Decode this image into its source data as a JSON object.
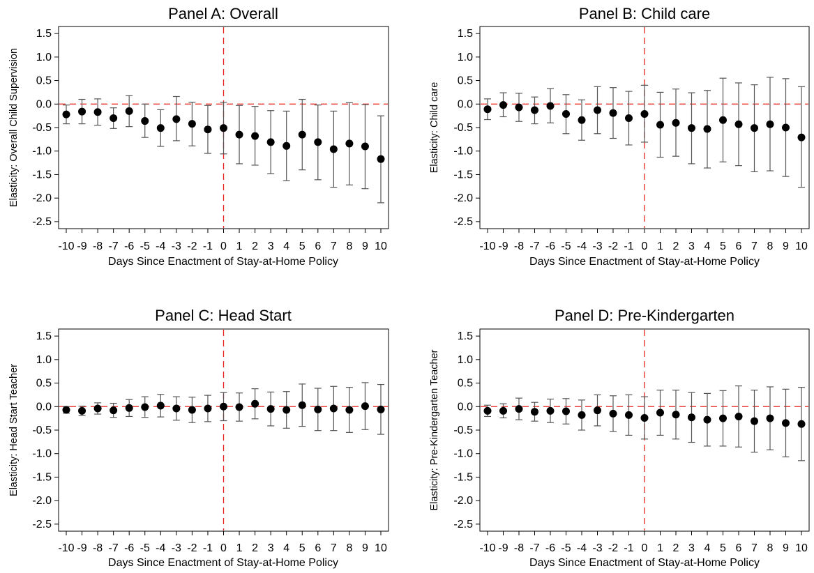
{
  "chart_data": [
    {
      "type": "scatter",
      "title": "Panel A: Overall",
      "xlabel": "Days Since Enactment of Stay-at-Home Policy",
      "ylabel": "Elasticity: Overall Child Supervision",
      "x": [
        -10,
        -9,
        -8,
        -7,
        -6,
        -5,
        -4,
        -3,
        -2,
        -1,
        0,
        1,
        2,
        3,
        4,
        5,
        6,
        7,
        8,
        9,
        10
      ],
      "x_tick_labels": [
        "-10",
        "-9",
        "-8",
        "-7",
        "-6",
        "-5",
        "-4",
        "-3",
        "-2",
        "-1",
        "0",
        "1",
        "2",
        "3",
        "4",
        "5",
        "6",
        "7",
        "8",
        "9",
        "10"
      ],
      "y": [
        -0.22,
        -0.16,
        -0.17,
        -0.3,
        -0.15,
        -0.36,
        -0.51,
        -0.32,
        -0.42,
        -0.54,
        -0.51,
        -0.65,
        -0.68,
        -0.81,
        -0.89,
        -0.65,
        -0.81,
        -0.96,
        -0.84,
        -0.9,
        -1.17
      ],
      "ci_low": [
        -0.42,
        -0.42,
        -0.45,
        -0.52,
        -0.48,
        -0.71,
        -0.9,
        -0.78,
        -0.89,
        -1.05,
        -1.06,
        -1.27,
        -1.3,
        -1.48,
        -1.63,
        -1.4,
        -1.61,
        -1.77,
        -1.72,
        -1.8,
        -2.1
      ],
      "ci_high": [
        -0.02,
        0.1,
        0.11,
        -0.08,
        0.18,
        0.0,
        -0.12,
        0.16,
        0.04,
        -0.03,
        0.04,
        -0.03,
        -0.05,
        -0.14,
        -0.15,
        0.1,
        -0.02,
        -0.15,
        0.03,
        -0.01,
        -0.25
      ],
      "ylim": [
        -2.65,
        1.65
      ],
      "y_ticks": [
        1.5,
        1.0,
        0.5,
        0.0,
        -0.5,
        -1.0,
        -1.5,
        -2.0,
        -2.5
      ],
      "y_tick_labels": [
        "1.5",
        "1.0",
        "0.5",
        "0.0",
        "-0.5",
        "-1.0",
        "-1.5",
        "-2.0",
        "-2.5"
      ],
      "reference_lines": {
        "horizontal_y": 0,
        "vertical_x": 0,
        "color": "#e8231f"
      },
      "grid": false
    },
    {
      "type": "scatter",
      "title": "Panel B: Child care",
      "xlabel": "Days Since Enactment of Stay-at-Home Policy",
      "ylabel": "Elasticity: Child care",
      "x": [
        -10,
        -9,
        -8,
        -7,
        -6,
        -5,
        -4,
        -3,
        -2,
        -1,
        0,
        1,
        2,
        3,
        4,
        5,
        6,
        7,
        8,
        9,
        10
      ],
      "x_tick_labels": [
        "-10",
        "-9",
        "-8",
        "-7",
        "-6",
        "-5",
        "-4",
        "-3",
        "-2",
        "-1",
        "0",
        "1",
        "2",
        "3",
        "4",
        "5",
        "6",
        "7",
        "8",
        "9",
        "10"
      ],
      "y": [
        -0.11,
        -0.02,
        -0.07,
        -0.13,
        -0.04,
        -0.21,
        -0.34,
        -0.13,
        -0.19,
        -0.3,
        -0.21,
        -0.44,
        -0.4,
        -0.51,
        -0.53,
        -0.34,
        -0.43,
        -0.51,
        -0.43,
        -0.5,
        -0.71
      ],
      "ci_low": [
        -0.33,
        -0.27,
        -0.37,
        -0.42,
        -0.4,
        -0.63,
        -0.77,
        -0.63,
        -0.73,
        -0.87,
        -0.81,
        -1.13,
        -1.11,
        -1.27,
        -1.36,
        -1.23,
        -1.31,
        -1.44,
        -1.42,
        -1.54,
        -1.77
      ],
      "ci_high": [
        0.11,
        0.24,
        0.23,
        0.15,
        0.33,
        0.2,
        0.09,
        0.37,
        0.35,
        0.27,
        0.4,
        0.25,
        0.32,
        0.24,
        0.29,
        0.55,
        0.45,
        0.41,
        0.57,
        0.54,
        0.37
      ],
      "ylim": [
        -2.65,
        1.65
      ],
      "y_ticks": [
        1.5,
        1.0,
        0.5,
        0.0,
        -0.5,
        -1.0,
        -1.5,
        -2.0,
        -2.5
      ],
      "y_tick_labels": [
        "1.5",
        "1.0",
        "0.5",
        "0.0",
        "-0.5",
        "-1.0",
        "-1.5",
        "-2.0",
        "-2.5"
      ],
      "reference_lines": {
        "horizontal_y": 0,
        "vertical_x": 0,
        "color": "#e8231f"
      },
      "grid": false
    },
    {
      "type": "scatter",
      "title": "Panel C: Head Start",
      "xlabel": "Days Since Enactment of Stay-at-Home Policy",
      "ylabel": "Elasticity: Head Start Teacher",
      "x": [
        -10,
        -9,
        -8,
        -7,
        -6,
        -5,
        -4,
        -3,
        -2,
        -1,
        0,
        1,
        2,
        3,
        4,
        5,
        6,
        7,
        8,
        9,
        10
      ],
      "x_tick_labels": [
        "-10",
        "-9",
        "-8",
        "-7",
        "-6",
        "-5",
        "-4",
        "-3",
        "-2",
        "-1",
        "0",
        "1",
        "2",
        "3",
        "4",
        "5",
        "6",
        "7",
        "8",
        "9",
        "10"
      ],
      "y": [
        -0.07,
        -0.09,
        -0.04,
        -0.08,
        -0.03,
        -0.01,
        0.02,
        -0.04,
        -0.07,
        -0.04,
        0.0,
        -0.01,
        0.06,
        -0.05,
        -0.07,
        0.03,
        -0.06,
        -0.04,
        -0.07,
        0.01,
        -0.06
      ],
      "ci_low": [
        -0.14,
        -0.19,
        -0.16,
        -0.23,
        -0.21,
        -0.23,
        -0.22,
        -0.29,
        -0.34,
        -0.32,
        -0.3,
        -0.31,
        -0.26,
        -0.41,
        -0.46,
        -0.42,
        -0.51,
        -0.51,
        -0.55,
        -0.49,
        -0.59
      ],
      "ci_high": [
        0.0,
        0.01,
        0.08,
        0.07,
        0.15,
        0.21,
        0.26,
        0.21,
        0.2,
        0.24,
        0.3,
        0.29,
        0.38,
        0.31,
        0.32,
        0.48,
        0.39,
        0.43,
        0.41,
        0.51,
        0.47
      ],
      "ylim": [
        -2.65,
        1.65
      ],
      "y_ticks": [
        1.5,
        1.0,
        0.5,
        0.0,
        -0.5,
        -1.0,
        -1.5,
        -2.0,
        -2.5
      ],
      "y_tick_labels": [
        "1.5",
        "1.0",
        "0.5",
        "0.0",
        "-0.5",
        "-1.0",
        "-1.5",
        "-2.0",
        "-2.5"
      ],
      "reference_lines": {
        "horizontal_y": 0,
        "vertical_x": 0,
        "color": "#e8231f"
      },
      "grid": false
    },
    {
      "type": "scatter",
      "title": "Panel D: Pre-Kindergarten",
      "xlabel": "Days Since Enactment of Stay-at-Home Policy",
      "ylabel": "Elasticity: Pre-Kindergarten Teacher",
      "x": [
        -10,
        -9,
        -8,
        -7,
        -6,
        -5,
        -4,
        -3,
        -2,
        -1,
        0,
        1,
        2,
        3,
        4,
        5,
        6,
        7,
        8,
        9,
        10
      ],
      "x_tick_labels": [
        "-10",
        "-9",
        "-8",
        "-7",
        "-6",
        "-5",
        "-4",
        "-3",
        "-2",
        "-1",
        "0",
        "1",
        "2",
        "3",
        "4",
        "5",
        "6",
        "7",
        "8",
        "9",
        "10"
      ],
      "y": [
        -0.09,
        -0.09,
        -0.05,
        -0.11,
        -0.09,
        -0.1,
        -0.18,
        -0.08,
        -0.15,
        -0.18,
        -0.24,
        -0.13,
        -0.17,
        -0.23,
        -0.28,
        -0.25,
        -0.21,
        -0.31,
        -0.25,
        -0.35,
        -0.37
      ],
      "ci_low": [
        -0.21,
        -0.24,
        -0.28,
        -0.31,
        -0.34,
        -0.37,
        -0.5,
        -0.41,
        -0.53,
        -0.61,
        -0.69,
        -0.61,
        -0.69,
        -0.76,
        -0.84,
        -0.84,
        -0.86,
        -0.97,
        -0.92,
        -1.07,
        -1.15
      ],
      "ci_high": [
        0.03,
        0.06,
        0.18,
        0.09,
        0.16,
        0.17,
        0.14,
        0.25,
        0.23,
        0.25,
        0.21,
        0.35,
        0.35,
        0.3,
        0.28,
        0.34,
        0.44,
        0.35,
        0.42,
        0.37,
        0.41
      ],
      "ylim": [
        -2.65,
        1.65
      ],
      "y_ticks": [
        1.5,
        1.0,
        0.5,
        0.0,
        -0.5,
        -1.0,
        -1.5,
        -2.0,
        -2.5
      ],
      "y_tick_labels": [
        "1.5",
        "1.0",
        "0.5",
        "0.0",
        "-0.5",
        "-1.0",
        "-1.5",
        "-2.0",
        "-2.5"
      ],
      "reference_lines": {
        "horizontal_y": 0,
        "vertical_x": 0,
        "color": "#e8231f"
      },
      "grid": false
    }
  ],
  "colors": {
    "marker": "#000000",
    "error_bar": "#555555",
    "reference_line": "#e8231f",
    "axis": "#000000",
    "background": "#ffffff"
  }
}
